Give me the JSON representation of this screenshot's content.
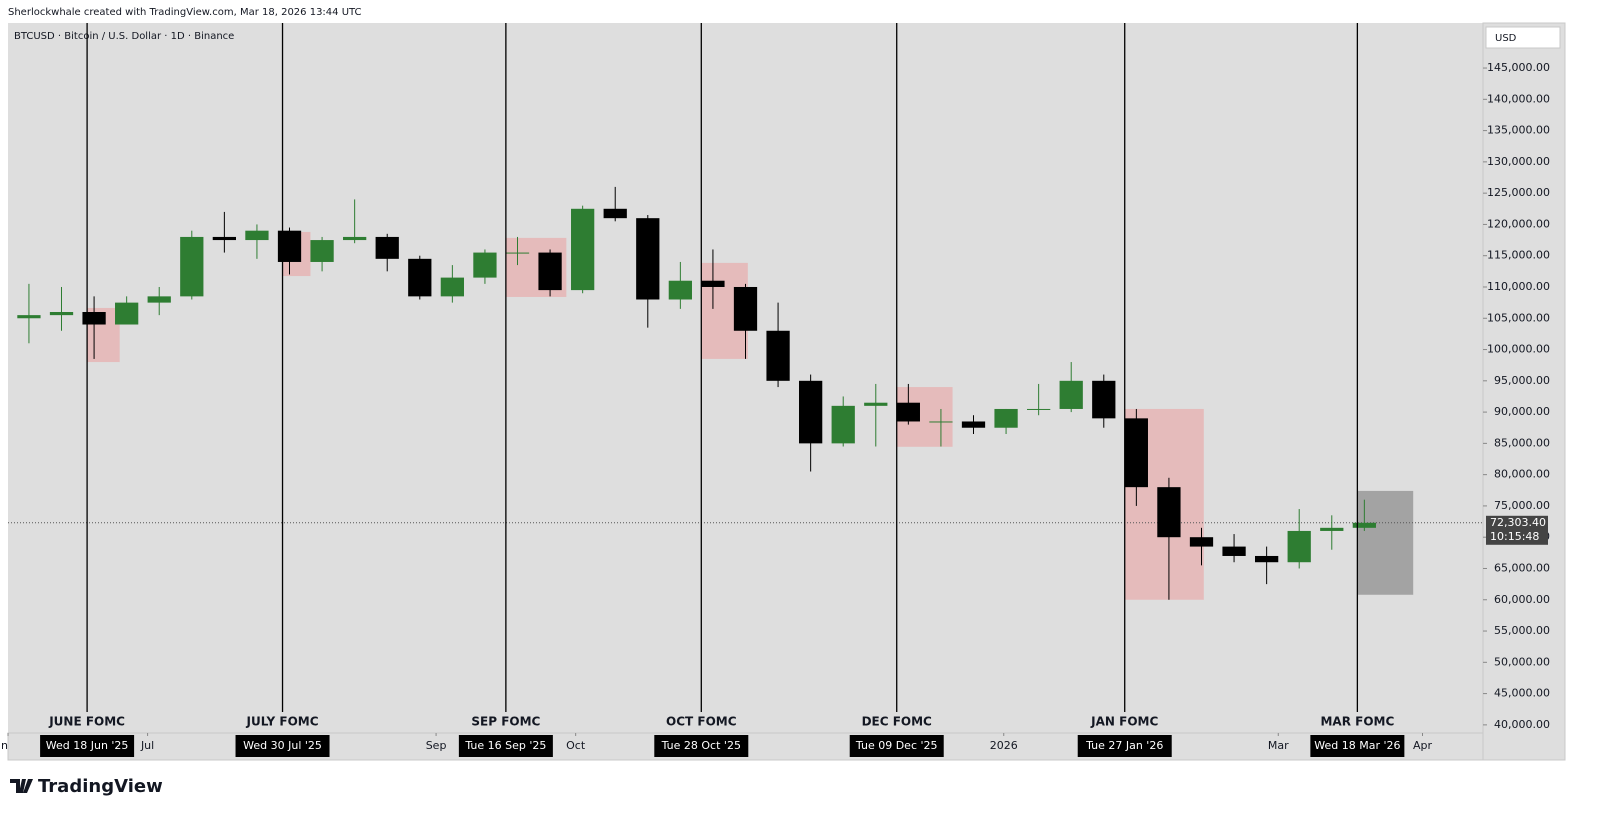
{
  "header": {
    "credit": "Sherlockwhale created with TradingView.com, Mar 18, 2026 13:44 UTC"
  },
  "chart_data": {
    "type": "candlestick",
    "title": "BTCUSD · Bitcoin / U.S. Dollar · 1D · Binance",
    "currency": "USD",
    "x": [
      "2025-06-02",
      "2025-06-09",
      "2025-06-16",
      "2025-06-23",
      "2025-06-30",
      "2025-07-07",
      "2025-07-14",
      "2025-07-21",
      "2025-07-28",
      "2025-08-04",
      "2025-08-11",
      "2025-08-18",
      "2025-08-25",
      "2025-09-01",
      "2025-09-08",
      "2025-09-15",
      "2025-09-22",
      "2025-09-29",
      "2025-10-06",
      "2025-10-13",
      "2025-10-20",
      "2025-10-27",
      "2025-11-03",
      "2025-11-10",
      "2025-11-17",
      "2025-11-24",
      "2025-12-01",
      "2025-12-08",
      "2025-12-15",
      "2025-12-22",
      "2025-12-29",
      "2026-01-05",
      "2026-01-12",
      "2026-01-19",
      "2026-01-26",
      "2026-02-02",
      "2026-02-09",
      "2026-02-16",
      "2026-02-23",
      "2026-03-02",
      "2026-03-09",
      "2026-03-16"
    ],
    "open": [
      105000,
      105500,
      106000,
      104000,
      107500,
      108500,
      118000,
      117500,
      119000,
      114000,
      117500,
      118000,
      114500,
      108500,
      111500,
      115500,
      115500,
      109500,
      122500,
      121000,
      108000,
      111000,
      110000,
      103000,
      95000,
      85000,
      91000,
      91500,
      88500,
      88500,
      87500,
      90500,
      90500,
      95000,
      89000,
      78000,
      70000,
      68500,
      67000,
      66000,
      71000,
      71500
    ],
    "high": [
      110500,
      110000,
      108500,
      108500,
      110000,
      119000,
      122000,
      120000,
      119500,
      118000,
      124000,
      118500,
      115000,
      113500,
      116000,
      118000,
      116000,
      123000,
      126000,
      121500,
      114000,
      116000,
      110500,
      107500,
      96000,
      92500,
      94500,
      94500,
      90500,
      89500,
      90500,
      94500,
      98000,
      96000,
      90500,
      79500,
      71500,
      70500,
      68500,
      74500,
      73500,
      76000
    ],
    "low": [
      101000,
      103000,
      98500,
      104000,
      105500,
      108000,
      115500,
      114500,
      112000,
      112500,
      117000,
      112500,
      108000,
      107500,
      110500,
      113500,
      108500,
      109000,
      120500,
      103500,
      106500,
      106500,
      98500,
      94000,
      80500,
      84500,
      84500,
      88000,
      84500,
      86500,
      86500,
      89500,
      90000,
      87500,
      75000,
      60000,
      65500,
      66000,
      62500,
      65000,
      68000,
      71000
    ],
    "close": [
      105500,
      106000,
      104000,
      107500,
      108500,
      118000,
      117500,
      119000,
      114000,
      117500,
      118000,
      114500,
      108500,
      111500,
      115500,
      115500,
      109500,
      122500,
      121000,
      108000,
      111000,
      110000,
      103000,
      95000,
      85000,
      91000,
      91500,
      88500,
      88500,
      87500,
      90500,
      90500,
      95000,
      89000,
      78000,
      70000,
      68500,
      67000,
      66000,
      71000,
      71500,
      72303.4
    ],
    "up_color": "#2e7d32",
    "down_color": "#000000",
    "xlim": [
      "2025-06-01",
      "2026-04-14"
    ],
    "ylim": [
      38700,
      152200
    ],
    "xticks": [
      {
        "value": "2025-06-01",
        "label": "Jun"
      },
      {
        "value": "2025-07-01",
        "label": "Jul"
      },
      {
        "value": "2025-09-01",
        "label": "Sep"
      },
      {
        "value": "2025-10-01",
        "label": "Oct"
      },
      {
        "value": "2026-01-01",
        "label": "2026"
      },
      {
        "value": "2026-03-01",
        "label": "Mar"
      },
      {
        "value": "2026-04-01",
        "label": "Apr"
      }
    ],
    "yticks": [
      {
        "value": 40000,
        "label": "40,000.00"
      },
      {
        "value": 45000,
        "label": "45,000.00"
      },
      {
        "value": 50000,
        "label": "50,000.00"
      },
      {
        "value": 55000,
        "label": "55,000.00"
      },
      {
        "value": 60000,
        "label": "60,000.00"
      },
      {
        "value": 65000,
        "label": "65,000.00"
      },
      {
        "value": 70000,
        "label": "70,000.00"
      },
      {
        "value": 75000,
        "label": "75,000.00"
      },
      {
        "value": 80000,
        "label": "80,000.00"
      },
      {
        "value": 85000,
        "label": "85,000.00"
      },
      {
        "value": 90000,
        "label": "90,000.00"
      },
      {
        "value": 95000,
        "label": "95,000.00"
      },
      {
        "value": 100000,
        "label": "100,000.00"
      },
      {
        "value": 105000,
        "label": "105,000.00"
      },
      {
        "value": 110000,
        "label": "110,000.00"
      },
      {
        "value": 115000,
        "label": "115,000.00"
      },
      {
        "value": 120000,
        "label": "120,000.00"
      },
      {
        "value": 125000,
        "label": "125,000.00"
      },
      {
        "value": 130000,
        "label": "130,000.00"
      },
      {
        "value": 135000,
        "label": "135,000.00"
      },
      {
        "value": 140000,
        "label": "140,000.00"
      },
      {
        "value": 145000,
        "label": "145,000.00"
      }
    ],
    "events": [
      {
        "date": "2025-06-18",
        "label": "JUNE FOMC",
        "date_label": "Wed 18 Jun '25"
      },
      {
        "date": "2025-07-30",
        "label": "JULY FOMC",
        "date_label": "Wed 30 Jul '25"
      },
      {
        "date": "2025-09-16",
        "label": "SEP FOMC",
        "date_label": "Tue 16 Sep '25"
      },
      {
        "date": "2025-10-28",
        "label": "OCT FOMC",
        "date_label": "Tue 28 Oct '25"
      },
      {
        "date": "2025-12-09",
        "label": "DEC FOMC",
        "date_label": "Tue 09 Dec '25"
      },
      {
        "date": "2026-01-27",
        "label": "JAN FOMC",
        "date_label": "Tue 27 Jan '26"
      },
      {
        "date": "2026-03-18",
        "label": "MAR FOMC",
        "date_label": "Wed 18 Mar '26"
      }
    ],
    "zones": [
      {
        "start": "2025-06-18",
        "end": "2025-06-25",
        "top": 106650,
        "bottom": 98000,
        "color": "#e6b5b5"
      },
      {
        "start": "2025-07-30",
        "end": "2025-08-05",
        "top": 118800,
        "bottom": 111750,
        "color": "#e6b5b5"
      },
      {
        "start": "2025-09-16",
        "end": "2025-09-29",
        "top": 117850,
        "bottom": 108400,
        "color": "#e6b5b5"
      },
      {
        "start": "2025-10-28",
        "end": "2025-11-07",
        "top": 113850,
        "bottom": 98500,
        "color": "#e6b5b5"
      },
      {
        "start": "2025-12-09",
        "end": "2025-12-21",
        "top": 94000,
        "bottom": 84450,
        "color": "#e6b5b5"
      },
      {
        "start": "2026-01-27",
        "end": "2026-02-13",
        "top": 90500,
        "bottom": 60000,
        "color": "#e6b5b5"
      },
      {
        "start": "2026-03-18",
        "end": "2026-03-30",
        "top": 77400,
        "bottom": 60800,
        "color": "#999999"
      }
    ],
    "last_price": {
      "value": 72303.4,
      "label": "72,303.40"
    },
    "countdown": "10:15:48"
  },
  "footer": {
    "brand": "TradingView"
  }
}
